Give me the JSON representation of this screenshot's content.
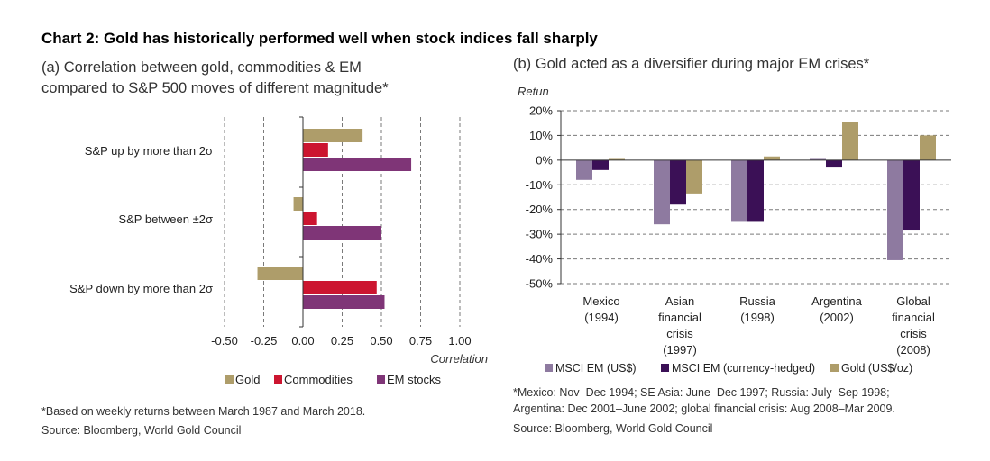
{
  "title": "Chart 2: Gold has historically performed well when stock indices fall sharply",
  "colors": {
    "gold": "#ae9d6a",
    "commodities": "#cc1530",
    "em_stocks": "#7f3577",
    "msci_em_usd": "#8e7aa0",
    "msci_em_hedged": "#3b1056",
    "gold_usd_oz": "#ae9d6a"
  },
  "chart_data": [
    {
      "type": "bar",
      "orientation": "horizontal",
      "subtitle_line1": "(a) Correlation between gold, commodities & EM",
      "subtitle_line2": "compared to S&P 500 moves of different magnitude*",
      "categories": [
        "S&P up by more than 2σ",
        "S&P between ±2σ",
        "S&P down by more than 2σ"
      ],
      "series": [
        {
          "name": "Gold",
          "values": [
            0.38,
            -0.06,
            -0.29
          ]
        },
        {
          "name": "Commodities",
          "values": [
            0.16,
            0.09,
            0.47
          ]
        },
        {
          "name": "EM stocks",
          "values": [
            0.69,
            0.5,
            0.52
          ]
        }
      ],
      "xlim": [
        -0.5,
        1.0
      ],
      "xticks": [
        "-0.50",
        "-0.25",
        "0.00",
        "0.25",
        "0.50",
        "0.75",
        "1.00"
      ],
      "xlabel": "Correlation",
      "grid": "vertical dashed",
      "legend": [
        "Gold",
        "Commodities",
        "EM stocks"
      ],
      "footnote": "*Based on weekly returns between March 1987 and March 2018.",
      "source": "Source: Bloomberg, World Gold Council"
    },
    {
      "type": "bar",
      "orientation": "vertical",
      "subtitle": "(b) Gold acted as a diversifier during major EM crises*",
      "ylabel": "Retun",
      "categories": [
        [
          "Mexico",
          "(1994)"
        ],
        [
          "Asian",
          "financial",
          "crisis",
          "(1997)"
        ],
        [
          "Russia",
          "(1998)"
        ],
        [
          "Argentina",
          "(2002)"
        ],
        [
          "Global",
          "financial",
          "crisis",
          "(2008)"
        ]
      ],
      "series": [
        {
          "name": "MSCI EM (US$)",
          "values": [
            -8,
            -26,
            -25,
            0.5,
            -40.5
          ]
        },
        {
          "name": "MSCI EM (currency-hedged)",
          "values": [
            -4,
            -18,
            -25,
            -3,
            -28.5
          ]
        },
        {
          "name": "Gold (US$/oz)",
          "values": [
            0.5,
            -13.5,
            1.5,
            15.5,
            10
          ]
        }
      ],
      "ylim": [
        -50,
        20
      ],
      "yticks": [
        "20%",
        "10%",
        "0%",
        "-10%",
        "-20%",
        "-30%",
        "-40%",
        "-50%"
      ],
      "grid": "horizontal dashed",
      "legend": [
        "MSCI EM (US$)",
        "MSCI EM (currency-hedged)",
        "Gold (US$/oz)"
      ],
      "footnote_line1": "*Mexico: Nov–Dec 1994; SE Asia: June–Dec 1997; Russia: July–Sep 1998;",
      "footnote_line2": "Argentina: Dec 2001–June 2002; global financial crisis: Aug 2008–Mar 2009.",
      "source": "Source: Bloomberg, World Gold Council"
    }
  ]
}
